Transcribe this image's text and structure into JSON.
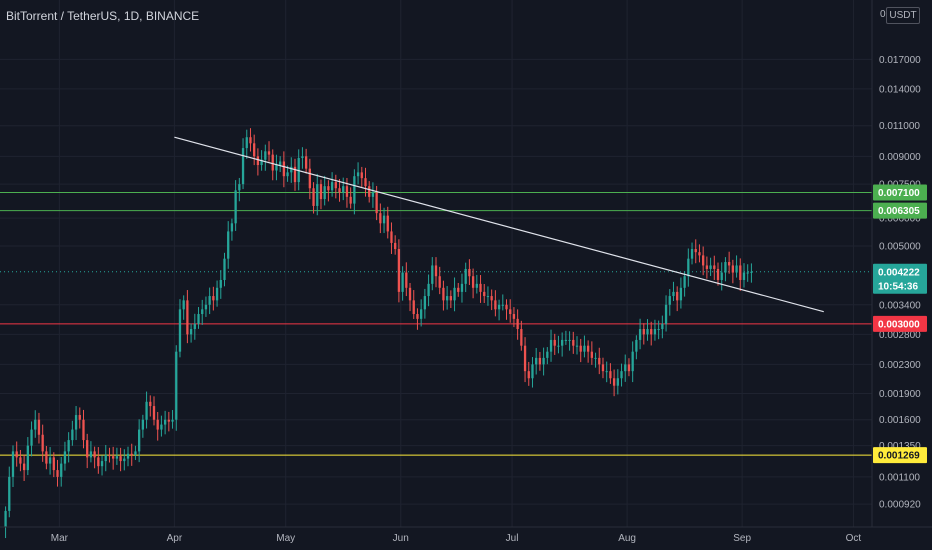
{
  "header": {
    "symbol_title": "BitTorrent / TetherUS, 1D, BINANCE",
    "currency": "USDT",
    "scale_zero": "0"
  },
  "colors": {
    "background": "#131722",
    "grid": "#1f2330",
    "up": "#26a69a",
    "down": "#ef5350",
    "text": "#b2b5be",
    "trendline": "#e0e3eb",
    "green_level": "#4caf50",
    "red_level": "#f23645",
    "yellow_level": "#ffeb3b",
    "current_price": "#26a69a"
  },
  "chart_data": {
    "type": "candlestick",
    "y_scale": "log",
    "ylim": [
      0.00084,
      0.022
    ],
    "y_ticks": [
      "0.017000",
      "0.014000",
      "0.011000",
      "0.009000",
      "0.007500",
      "0.006000",
      "0.005000",
      "0.003400",
      "0.002800",
      "0.002300",
      "0.001900",
      "0.001600",
      "0.001350",
      "0.001100",
      "0.000920"
    ],
    "x_ticks": [
      "Mar",
      "Apr",
      "May",
      "Jun",
      "Jul",
      "Aug",
      "Sep",
      "Oct"
    ],
    "x_range": [
      "2021-02-13",
      "2021-10-06"
    ],
    "candles": {
      "first_date": "2021-02-14",
      "interval": "1D",
      "closes": [
        0.00088,
        0.0011,
        0.0013,
        0.00125,
        0.0012,
        0.00115,
        0.00135,
        0.0015,
        0.0016,
        0.00145,
        0.0013,
        0.0012,
        0.00125,
        0.00115,
        0.0011,
        0.0012,
        0.0013,
        0.0014,
        0.0015,
        0.00165,
        0.0016,
        0.0014,
        0.00125,
        0.0013,
        0.00125,
        0.00118,
        0.00122,
        0.00127,
        0.00126,
        0.00124,
        0.00126,
        0.00122,
        0.00124,
        0.00128,
        0.00127,
        0.0013,
        0.0015,
        0.0016,
        0.0018,
        0.00175,
        0.0016,
        0.0015,
        0.00155,
        0.0016,
        0.00158,
        0.0016,
        0.0025,
        0.0033,
        0.0035,
        0.0028,
        0.0029,
        0.003,
        0.0032,
        0.0033,
        0.0034,
        0.0036,
        0.0035,
        0.0038,
        0.004,
        0.0046,
        0.0055,
        0.0058,
        0.0072,
        0.0075,
        0.0095,
        0.0102,
        0.0098,
        0.009,
        0.0085,
        0.0088,
        0.0093,
        0.0091,
        0.0082,
        0.0085,
        0.0087,
        0.0079,
        0.0081,
        0.0084,
        0.0076,
        0.0089,
        0.009,
        0.0083,
        0.0073,
        0.0065,
        0.0075,
        0.0068,
        0.0074,
        0.0072,
        0.0076,
        0.0073,
        0.0071,
        0.0074,
        0.0069,
        0.0066,
        0.0079,
        0.0081,
        0.0078,
        0.0074,
        0.0069,
        0.0071,
        0.0062,
        0.0058,
        0.0061,
        0.0055,
        0.0051,
        0.0049,
        0.0037,
        0.0042,
        0.0038,
        0.0035,
        0.0032,
        0.0031,
        0.0033,
        0.0036,
        0.0039,
        0.0044,
        0.0041,
        0.0038,
        0.0035,
        0.0036,
        0.0035,
        0.0038,
        0.0037,
        0.0039,
        0.0043,
        0.0041,
        0.0038,
        0.0039,
        0.0037,
        0.0036,
        0.0036,
        0.0035,
        0.0033,
        0.0034,
        0.0034,
        0.0033,
        0.0032,
        0.0031,
        0.0029,
        0.0026,
        0.0022,
        0.0021,
        0.0023,
        0.0024,
        0.0023,
        0.0024,
        0.0025,
        0.0027,
        0.0026,
        0.0026,
        0.0027,
        0.0027,
        0.0027,
        0.0026,
        0.0026,
        0.0025,
        0.0026,
        0.0025,
        0.0024,
        0.0024,
        0.0023,
        0.0022,
        0.0022,
        0.0021,
        0.002,
        0.0021,
        0.0022,
        0.0023,
        0.0022,
        0.0025,
        0.0027,
        0.0029,
        0.0028,
        0.0029,
        0.0028,
        0.0029,
        0.0029,
        0.003,
        0.0034,
        0.0036,
        0.0037,
        0.0035,
        0.0038,
        0.0041,
        0.0046,
        0.0049,
        0.0048,
        0.0047,
        0.0044,
        0.0043,
        0.0044,
        0.0043,
        0.004,
        0.0042,
        0.0045,
        0.0044,
        0.0042,
        0.0044,
        0.004,
        0.0042,
        0.0042,
        0.00422
      ]
    },
    "trendline": {
      "start": [
        "2021-04-01",
        0.0102
      ],
      "end": [
        "2021-09-23",
        0.00325
      ]
    },
    "levels": [
      {
        "name": "green-level-upper",
        "value": 0.0071,
        "label": "0.007100",
        "color": "#4caf50"
      },
      {
        "name": "green-level-lower",
        "value": 0.006305,
        "label": "0.006305",
        "color": "#4caf50"
      },
      {
        "name": "red-level",
        "value": 0.003,
        "label": "0.003000",
        "color": "#f23645"
      },
      {
        "name": "yellow-level",
        "value": 0.001269,
        "label": "0.001269",
        "color": "#ffeb3b"
      }
    ],
    "current_price": {
      "value": 0.004222,
      "label": "0.004222",
      "countdown": "10:54:36"
    }
  }
}
